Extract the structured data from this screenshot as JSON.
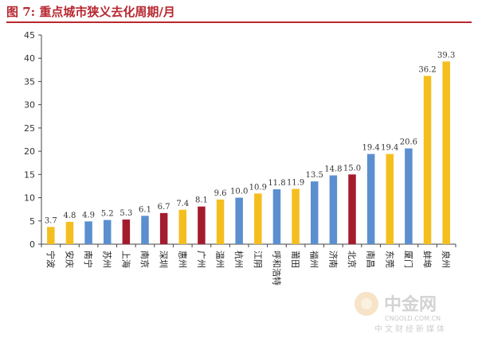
{
  "figure": {
    "title": "图 7: 重点城市狭义去化周期/月"
  },
  "chart_data": {
    "type": "bar",
    "title": "",
    "xlabel": "",
    "ylabel": "",
    "ylim": [
      0,
      45
    ],
    "yticks": [
      "0",
      "5",
      "10",
      "15",
      "20",
      "25",
      "30",
      "35",
      "40",
      "45"
    ],
    "categories": [
      "宁波",
      "安庆",
      "南宁",
      "苏州",
      "上海",
      "南京",
      "深圳",
      "惠州",
      "广州",
      "温州",
      "杭州",
      "江阴",
      "呼和浩特",
      "莆田",
      "福州",
      "济南",
      "北京",
      "南昌",
      "东莞",
      "厦门",
      "蚌埠",
      "泉州"
    ],
    "values": [
      3.7,
      4.8,
      4.9,
      5.2,
      5.3,
      6.1,
      6.7,
      7.4,
      8.1,
      9.6,
      10.0,
      10.9,
      11.8,
      11.9,
      13.5,
      14.8,
      15.0,
      19.4,
      19.4,
      20.6,
      36.2,
      39.3
    ],
    "value_labels": [
      "3.7",
      "4.8",
      "4.9",
      "5.2",
      "5.3",
      "6.1",
      "6.7",
      "7.4",
      "8.1",
      "9.6",
      "10.0",
      "10.9",
      "11.8",
      "11.9",
      "13.5",
      "14.8",
      "15.0",
      "19.4",
      "19.4",
      "20.6",
      "36.2",
      "39.3"
    ],
    "bar_colors": [
      "#F5BE1F",
      "#F5BE1F",
      "#5B8FCF",
      "#5B8FCF",
      "#A31C2E",
      "#5B8FCF",
      "#A31C2E",
      "#F5BE1F",
      "#A31C2E",
      "#F5BE1F",
      "#5B8FCF",
      "#F5BE1F",
      "#5B8FCF",
      "#F5BE1F",
      "#5B8FCF",
      "#5B8FCF",
      "#A31C2E",
      "#5B8FCF",
      "#F5BE1F",
      "#5B8FCF",
      "#F5BE1F",
      "#F5BE1F"
    ],
    "grid": false,
    "legend": "none"
  },
  "watermark": {
    "brand": "中金网",
    "url": "CNGOLD.COM.CN",
    "tagline": "中文财经新媒体"
  },
  "colors": {
    "title": "#B8272F",
    "axis": "#444444"
  }
}
